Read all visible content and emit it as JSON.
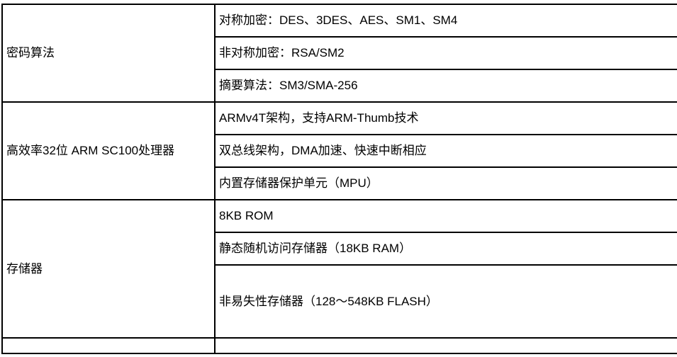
{
  "table": {
    "border_color": "#000000",
    "background_color": "#ffffff",
    "text_color": "#000000",
    "columns": [
      "category",
      "specification"
    ],
    "groups": [
      {
        "label": "密码算法",
        "rows": [
          "对称加密：DES、3DES、AES、SM1、SM4",
          "非对称加密：RSA/SM2",
          "摘要算法：SM3/SMA-256"
        ]
      },
      {
        "label": "高效率32位 ARM SC100处理器",
        "rows": [
          "ARMv4T架构，支持ARM-Thumb技术",
          "双总线架构，DMA加速、快速中断相应",
          "内置存储器保护单元（MPU）"
        ]
      },
      {
        "label": "存储器",
        "rows": [
          "8KB ROM",
          "静态随机访问存储器（18KB RAM）",
          "非易失性存储器（128～548KB FLASH）"
        ]
      }
    ]
  }
}
